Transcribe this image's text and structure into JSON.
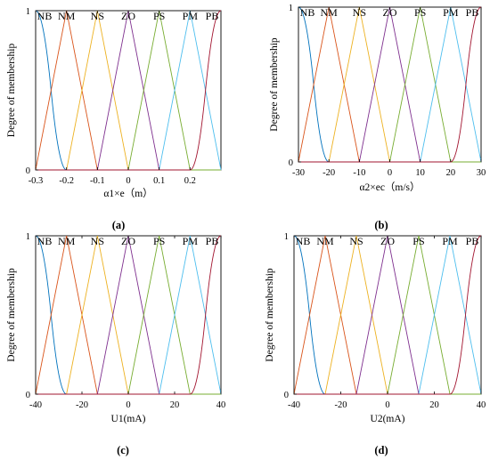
{
  "chart_data": [
    {
      "type": "line",
      "panel_label": "(a)",
      "xlabel": "α1×e（m）",
      "ylabel": "Degree of membership",
      "xlim": [
        -0.3,
        0.3
      ],
      "ylim": [
        0,
        1
      ],
      "xticks": [
        "-0.3",
        "-0.2",
        "-0.1",
        "0",
        "0.1",
        "0.2"
      ],
      "yticks": [
        "0",
        "1"
      ],
      "mf_labels": [
        "NB",
        "NM",
        "NS",
        "ZO",
        "PS",
        "PM",
        "PB"
      ],
      "series": [
        {
          "name": "NB",
          "shape": "zmf",
          "params": [
            -0.3,
            -0.2
          ]
        },
        {
          "name": "NM",
          "shape": "trimf",
          "params": [
            -0.3,
            -0.2,
            -0.1
          ]
        },
        {
          "name": "NS",
          "shape": "trimf",
          "params": [
            -0.2,
            -0.1,
            0
          ]
        },
        {
          "name": "ZO",
          "shape": "trimf",
          "params": [
            -0.1,
            0,
            0.1
          ]
        },
        {
          "name": "PS",
          "shape": "trimf",
          "params": [
            0,
            0.1,
            0.2
          ]
        },
        {
          "name": "PM",
          "shape": "trimf",
          "params": [
            0.1,
            0.2,
            0.3
          ]
        },
        {
          "name": "PB",
          "shape": "smf",
          "params": [
            0.2,
            0.3
          ]
        }
      ]
    },
    {
      "type": "line",
      "panel_label": "(b)",
      "xlabel": "α2×ec（m/s）",
      "ylabel": "Degree of membership",
      "xlim": [
        -30,
        30
      ],
      "ylim": [
        0,
        1
      ],
      "xticks": [
        "-30",
        "-20",
        "-10",
        "0",
        "10",
        "20",
        "30"
      ],
      "yticks": [
        "0",
        "1"
      ],
      "mf_labels": [
        "NB",
        "NM",
        "NS",
        "ZO",
        "PS",
        "PM",
        "PB"
      ],
      "series": [
        {
          "name": "NB",
          "shape": "zmf",
          "params": [
            -30,
            -20
          ]
        },
        {
          "name": "NM",
          "shape": "trimf",
          "params": [
            -30,
            -20,
            -10
          ]
        },
        {
          "name": "NS",
          "shape": "trimf",
          "params": [
            -20,
            -10,
            0
          ]
        },
        {
          "name": "ZO",
          "shape": "trimf",
          "params": [
            -10,
            0,
            10
          ]
        },
        {
          "name": "PS",
          "shape": "trimf",
          "params": [
            0,
            10,
            20
          ]
        },
        {
          "name": "PM",
          "shape": "trimf",
          "params": [
            10,
            20,
            30
          ]
        },
        {
          "name": "PB",
          "shape": "smf",
          "params": [
            20,
            30
          ]
        }
      ]
    },
    {
      "type": "line",
      "panel_label": "(c)",
      "xlabel": "U1(mA)",
      "ylabel": "Degree of membership",
      "xlim": [
        -40,
        40
      ],
      "ylim": [
        0,
        1
      ],
      "xticks": [
        "-40",
        "-20",
        "0",
        "20",
        "40"
      ],
      "yticks": [
        "0",
        "1"
      ],
      "mf_labels": [
        "NB",
        "NM",
        "NS",
        "ZO",
        "PS",
        "PM",
        "PB"
      ],
      "series": [
        {
          "name": "NB",
          "shape": "zmf",
          "params": [
            -40,
            -26.67
          ]
        },
        {
          "name": "NM",
          "shape": "trimf",
          "params": [
            -40,
            -26.67,
            -13.33
          ]
        },
        {
          "name": "NS",
          "shape": "trimf",
          "params": [
            -26.67,
            -13.33,
            0
          ]
        },
        {
          "name": "ZO",
          "shape": "trimf",
          "params": [
            -13.33,
            0,
            13.33
          ]
        },
        {
          "name": "PS",
          "shape": "trimf",
          "params": [
            0,
            13.33,
            26.67
          ]
        },
        {
          "name": "PM",
          "shape": "trimf",
          "params": [
            13.33,
            26.67,
            40
          ]
        },
        {
          "name": "PB",
          "shape": "smf",
          "params": [
            26.67,
            40
          ]
        }
      ]
    },
    {
      "type": "line",
      "panel_label": "(d)",
      "xlabel": "U2(mA)",
      "ylabel": "Degree of membership",
      "xlim": [
        -40,
        40
      ],
      "ylim": [
        0,
        1
      ],
      "xticks": [
        "-40",
        "-20",
        "0",
        "20",
        "40"
      ],
      "yticks": [
        "0",
        "1"
      ],
      "mf_labels": [
        "NB",
        "NM",
        "NS",
        "ZO",
        "PS",
        "PM",
        "PB"
      ],
      "series": [
        {
          "name": "NB",
          "shape": "zmf",
          "params": [
            -40,
            -26.67
          ]
        },
        {
          "name": "NM",
          "shape": "trimf",
          "params": [
            -40,
            -26.67,
            -13.33
          ]
        },
        {
          "name": "NS",
          "shape": "trimf",
          "params": [
            -26.67,
            -13.33,
            0
          ]
        },
        {
          "name": "ZO",
          "shape": "trimf",
          "params": [
            -13.33,
            0,
            13.33
          ]
        },
        {
          "name": "PS",
          "shape": "trimf",
          "params": [
            0,
            13.33,
            26.67
          ]
        },
        {
          "name": "PM",
          "shape": "trimf",
          "params": [
            13.33,
            26.67,
            40
          ]
        },
        {
          "name": "PB",
          "shape": "smf",
          "params": [
            26.67,
            40
          ]
        }
      ]
    }
  ],
  "colors": {
    "series": [
      "#0072BD",
      "#D95319",
      "#EDB120",
      "#7E2F8E",
      "#77AC30",
      "#4DBEEE",
      "#A2142F"
    ],
    "axis": "#000000"
  }
}
